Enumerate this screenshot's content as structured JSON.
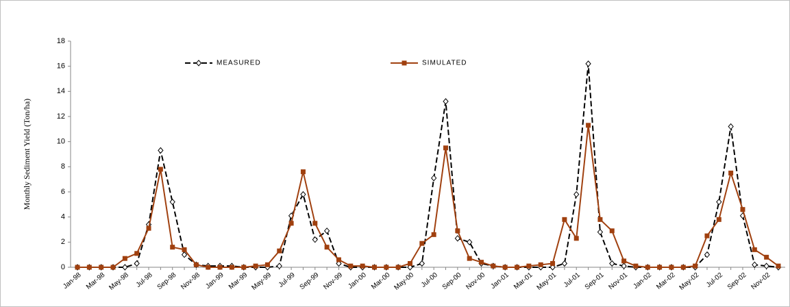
{
  "chart_data": {
    "type": "line",
    "y_label": "Monthly Sediment Yield (Ton/ha)",
    "categories": [
      "Jan-98",
      null,
      "Mar-98",
      null,
      "May-98",
      null,
      "Jul-98",
      null,
      "Sep-98",
      null,
      "Nov-98",
      null,
      "Jan-99",
      null,
      "Mar-99",
      null,
      "May-99",
      null,
      "Jul-99",
      null,
      "Sep-99",
      null,
      "Nov-99",
      null,
      "Jan-00",
      null,
      "Mar-00",
      null,
      "May-00",
      null,
      "Jul-00",
      null,
      "Sep-00",
      null,
      "Nov-00",
      null,
      "Jan-01",
      null,
      "Mar-01",
      null,
      "May-01",
      null,
      "Jul-01",
      null,
      "Sep-01",
      null,
      "Nov-01",
      null,
      "Jan-02",
      null,
      "Mar-02",
      null,
      "May-02",
      null,
      "Jul-02",
      null,
      "Sep-02",
      null,
      "Nov-02",
      null
    ],
    "series": [
      {
        "name": "MEASURED",
        "color": "#000000",
        "marker": "diamond",
        "dash": true,
        "values": [
          0,
          0,
          0,
          0,
          0,
          0.3,
          3.4,
          9.3,
          5.2,
          1.0,
          0.2,
          0.1,
          0.1,
          0.1,
          0,
          0,
          0,
          0.1,
          4.1,
          5.8,
          2.2,
          2.9,
          0.3,
          0,
          0,
          0,
          0,
          0,
          0,
          0.3,
          7.1,
          13.2,
          2.3,
          2.0,
          0.3,
          0.1,
          0,
          0,
          0,
          0,
          0,
          0.3,
          5.8,
          16.2,
          2.8,
          0.3,
          0.1,
          0,
          0,
          0,
          0,
          0,
          0,
          1.0,
          5.2,
          11.2,
          4.1,
          0.2,
          0.1,
          0
        ]
      },
      {
        "name": "SIMULATED",
        "color": "#a0400f",
        "marker": "square",
        "dash": false,
        "values": [
          0,
          0,
          0,
          0,
          0.7,
          1.1,
          3.1,
          7.8,
          1.6,
          1.4,
          0.2,
          0,
          0,
          0,
          0,
          0.1,
          0.2,
          1.3,
          3.5,
          7.6,
          3.5,
          1.6,
          0.6,
          0.1,
          0.1,
          0,
          0,
          0,
          0.3,
          1.9,
          2.6,
          9.5,
          2.9,
          0.7,
          0.4,
          0.1,
          0,
          0,
          0.1,
          0.2,
          0.3,
          3.8,
          2.3,
          11.3,
          3.8,
          2.9,
          0.5,
          0.1,
          0,
          0,
          0,
          0,
          0.1,
          2.5,
          3.8,
          7.5,
          4.6,
          1.4,
          0.8,
          0.1
        ]
      }
    ],
    "ylim": [
      0,
      18
    ],
    "yticks": [
      0,
      2,
      4,
      6,
      8,
      10,
      12,
      14,
      16,
      18
    ],
    "grid": false
  }
}
